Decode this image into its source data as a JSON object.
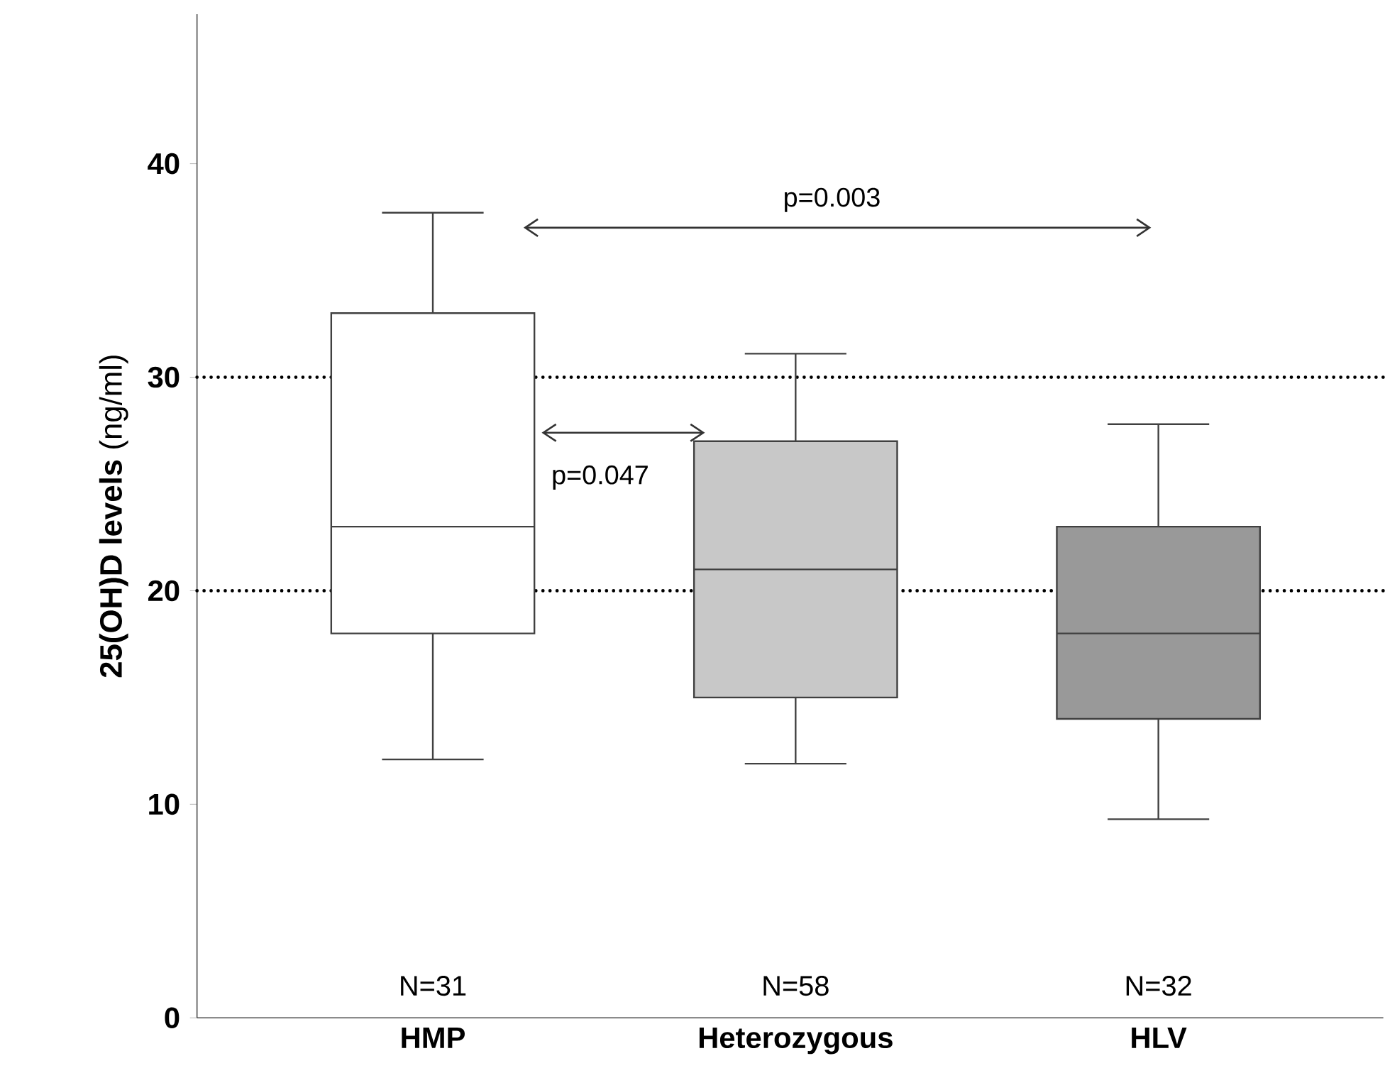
{
  "chart_data": {
    "type": "box",
    "ylabel": "**25(OH)D levels** (ng/ml)",
    "categories": [
      "HMP",
      "Heterozygous",
      "HLV"
    ],
    "boxes": [
      {
        "low": 12.1,
        "q1": 18,
        "median": 23,
        "q3": 33,
        "high": 37.7
      },
      {
        "low": 11.9,
        "q1": 15,
        "median": 21,
        "q3": 27,
        "high": 31.1
      },
      {
        "low": 9.3,
        "q1": 14,
        "median": 18,
        "q3": 23,
        "high": 27.8
      }
    ],
    "colors": [
      "#ffffff",
      "#c8c8c8",
      "#999999"
    ],
    "ylim": [
      0,
      47
    ],
    "yticks": [
      0,
      10,
      20,
      30,
      40
    ],
    "ref_lines": [
      {
        "axis": "y",
        "value": 20,
        "color": "#000000",
        "line_style": "dotted"
      },
      {
        "axis": "y",
        "value": 30,
        "color": "#000000",
        "line_style": "dotted"
      }
    ],
    "annotations": [
      "p=0.003",
      "p=0.047",
      "N=31",
      "N=58",
      "N=32"
    ],
    "grid": false
  }
}
